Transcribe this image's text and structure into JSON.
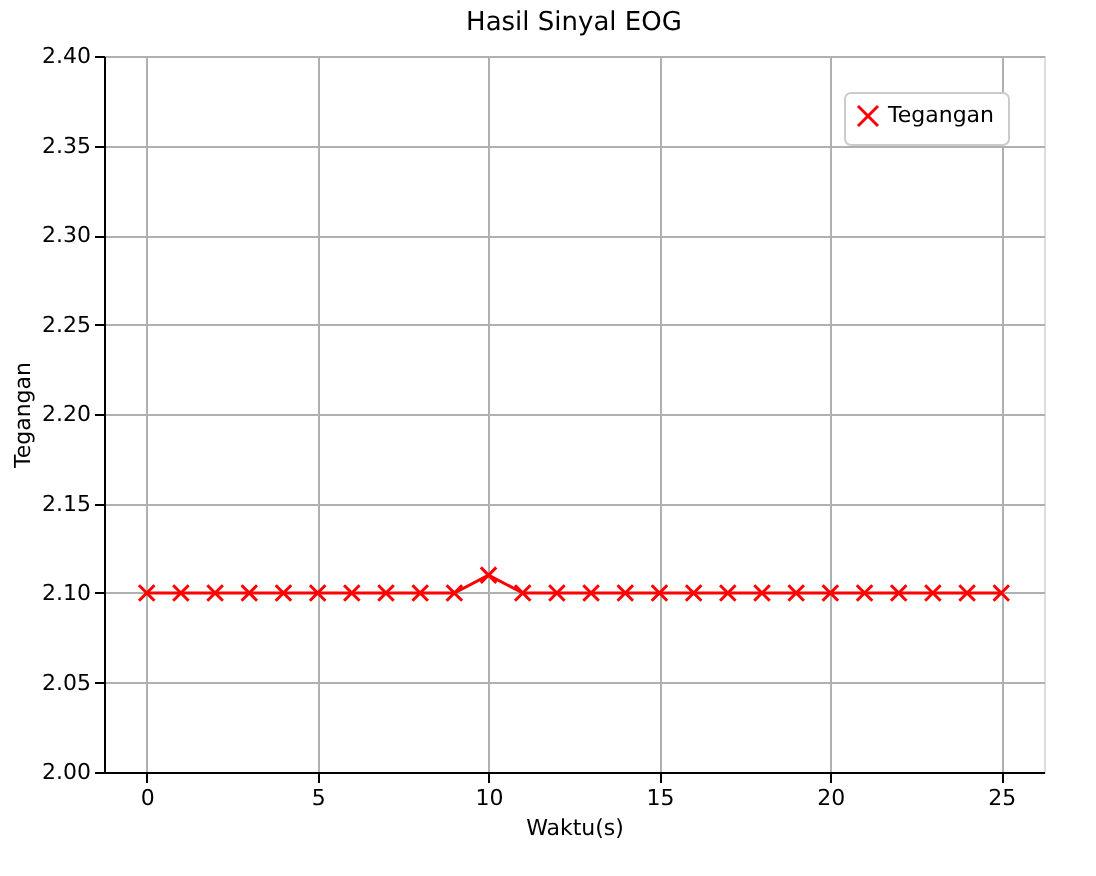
{
  "chart_data": {
    "type": "line",
    "title": "Hasil Sinyal EOG",
    "xlabel": "Waktu(s)",
    "ylabel": "Tegangan",
    "x": [
      0,
      1,
      2,
      3,
      4,
      5,
      6,
      7,
      8,
      9,
      10,
      11,
      12,
      13,
      14,
      15,
      16,
      17,
      18,
      19,
      20,
      21,
      22,
      23,
      24,
      25
    ],
    "series": [
      {
        "name": "Tegangan",
        "color": "#ff0000",
        "values": [
          2.1,
          2.1,
          2.1,
          2.1,
          2.1,
          2.1,
          2.1,
          2.1,
          2.1,
          2.1,
          2.11,
          2.1,
          2.1,
          2.1,
          2.1,
          2.1,
          2.1,
          2.1,
          2.1,
          2.1,
          2.1,
          2.1,
          2.1,
          2.1,
          2.1,
          2.1
        ]
      }
    ],
    "xlim": [
      -1.25,
      26.25
    ],
    "xticks": [
      0,
      5,
      10,
      15,
      20,
      25
    ],
    "ylim": [
      2.0,
      2.4
    ],
    "yticks": [
      {
        "value": 2.0,
        "label": "2.00"
      },
      {
        "value": 2.05,
        "label": "2.05"
      },
      {
        "value": 2.1,
        "label": "2.10"
      },
      {
        "value": 2.15,
        "label": "2.15"
      },
      {
        "value": 2.2,
        "label": "2.20"
      },
      {
        "value": 2.25,
        "label": "2.25"
      },
      {
        "value": 2.3,
        "label": "2.30"
      },
      {
        "value": 2.35,
        "label": "2.35"
      },
      {
        "value": 2.4,
        "label": "2.40"
      }
    ],
    "grid": true,
    "legend": "top right",
    "marker": "cross",
    "line_style": "solid"
  }
}
